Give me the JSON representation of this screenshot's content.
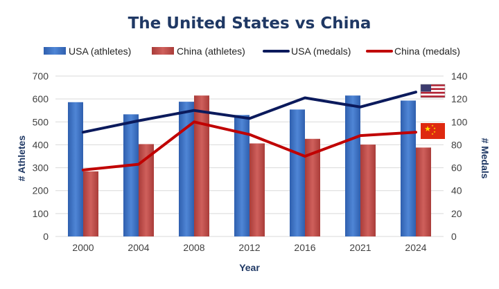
{
  "chart_data": {
    "type": "bar",
    "title": "The United States vs China",
    "xlabel": "Year",
    "ylabel": "# Athletes",
    "y2label": "# Medals",
    "categories": [
      "2000",
      "2004",
      "2008",
      "2012",
      "2016",
      "2021",
      "2024"
    ],
    "ylim": [
      0,
      700
    ],
    "y2lim": [
      0,
      140
    ],
    "yticks": [
      "0",
      "100",
      "200",
      "300",
      "400",
      "500",
      "600",
      "700"
    ],
    "y2ticks": [
      "0",
      "20",
      "40",
      "60",
      "80",
      "100",
      "120",
      "140"
    ],
    "grid": true,
    "legend_position": "top",
    "series": [
      {
        "name": "USA (athletes)",
        "kind": "bar",
        "axis": "left",
        "color": "#4a7fd0",
        "values": [
          586,
          533,
          588,
          530,
          554,
          615,
          593
        ]
      },
      {
        "name": "China (athletes)",
        "kind": "bar",
        "axis": "left",
        "color": "#c0504d",
        "values": [
          284,
          403,
          615,
          406,
          426,
          401,
          388
        ]
      },
      {
        "name": "USA (medals)",
        "kind": "line",
        "axis": "right",
        "color": "#0b1a5c",
        "values": [
          91,
          101,
          110,
          103,
          121,
          113,
          126
        ]
      },
      {
        "name": "China (medals)",
        "kind": "line",
        "axis": "right",
        "color": "#c00000",
        "values": [
          58,
          63,
          100,
          89,
          70,
          88,
          91
        ]
      }
    ],
    "flags": [
      {
        "name": "us-flag-icon",
        "series": "USA (medals)"
      },
      {
        "name": "china-flag-icon",
        "series": "China (medals)"
      }
    ]
  }
}
